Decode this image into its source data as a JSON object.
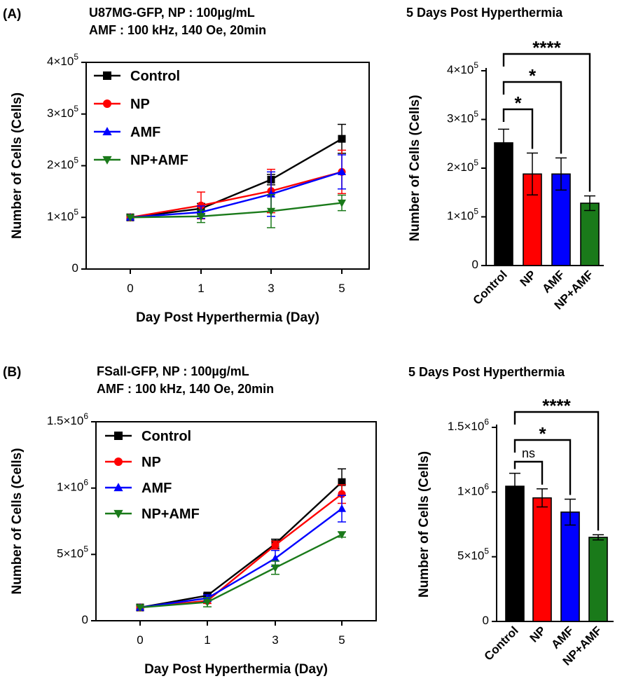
{
  "colors": {
    "Control": "#000000",
    "NP": "#ff0000",
    "AMF": "#0000ff",
    "NP+AMF": "#1a7a1a"
  },
  "panel_labels": [
    "(A)",
    "(B)"
  ],
  "chart_data": [
    {
      "type": "line",
      "panel": "(A)",
      "title": [
        "U87MG-GFP, NP : 100µg/mL",
        "AMF : 100 kHz, 140 Oe, 20min"
      ],
      "xlabel": "Day Post Hyperthermia (Day)",
      "ylabel": "Number of Cells (Cells)",
      "x_tick_labels": [
        "0",
        "1",
        "3",
        "5"
      ],
      "y_ticks": [
        {
          "value": 0,
          "mant": "0",
          "exp": ""
        },
        {
          "value": 100000,
          "mant": "1×10",
          "exp": "5"
        },
        {
          "value": 200000,
          "mant": "2×10",
          "exp": "5"
        },
        {
          "value": 300000,
          "mant": "3×10",
          "exp": "5"
        },
        {
          "value": 400000,
          "mant": "4×10",
          "exp": "5"
        }
      ],
      "ylim": [
        0,
        400000
      ],
      "legend": "top-left",
      "series": [
        {
          "name": "Control",
          "marker": "square",
          "values": [
            100000,
            117000,
            173000,
            252000
          ],
          "errors": [
            0,
            10000,
            10000,
            28000
          ]
        },
        {
          "name": "NP",
          "marker": "circle",
          "values": [
            100000,
            123000,
            151000,
            188000
          ],
          "errors": [
            0,
            26000,
            42000,
            42000
          ]
        },
        {
          "name": "AMF",
          "marker": "triangle-up",
          "values": [
            100000,
            110000,
            145000,
            188000
          ],
          "errors": [
            0,
            12000,
            43000,
            33000
          ]
        },
        {
          "name": "NP+AMF",
          "marker": "triangle-down",
          "values": [
            100000,
            102000,
            112000,
            128000
          ],
          "errors": [
            0,
            12000,
            32000,
            15000
          ]
        }
      ]
    },
    {
      "type": "bar",
      "panel": "(A)",
      "title": "5 Days Post Hyperthermia",
      "ylabel": "Number of Cells (Cells)",
      "categories": [
        "Control",
        "NP",
        "AMF",
        "NP+AMF"
      ],
      "values": [
        252000,
        188000,
        188000,
        128000
      ],
      "errors": [
        28000,
        43000,
        33000,
        15000
      ],
      "y_ticks": [
        {
          "value": 0,
          "mant": "0",
          "exp": ""
        },
        {
          "value": 100000,
          "mant": "1×10",
          "exp": "5"
        },
        {
          "value": 200000,
          "mant": "2×10",
          "exp": "5"
        },
        {
          "value": 300000,
          "mant": "3×10",
          "exp": "5"
        },
        {
          "value": 400000,
          "mant": "4×10",
          "exp": "5"
        }
      ],
      "ylim": [
        0,
        400000
      ],
      "significance": [
        {
          "from": "Control",
          "to": "NP",
          "label": "*"
        },
        {
          "from": "Control",
          "to": "AMF",
          "label": "*"
        },
        {
          "from": "Control",
          "to": "NP+AMF",
          "label": "****"
        }
      ]
    },
    {
      "type": "line",
      "panel": "(B)",
      "title": [
        "FSall-GFP, NP : 100µg/mL",
        "AMF : 100 kHz, 140 Oe, 20min"
      ],
      "xlabel": "Day Post Hyperthermia (Day)",
      "ylabel": "Number of Cells (Cells)",
      "x_tick_labels": [
        "0",
        "1",
        "3",
        "5"
      ],
      "y_ticks": [
        {
          "value": 0,
          "mant": "0",
          "exp": ""
        },
        {
          "value": 500000,
          "mant": "5×10",
          "exp": "5"
        },
        {
          "value": 1000000,
          "mant": "1×10",
          "exp": "6"
        },
        {
          "value": 1500000,
          "mant": "1.5×10",
          "exp": "6"
        }
      ],
      "ylim": [
        0,
        1500000
      ],
      "legend": "top-left",
      "series": [
        {
          "name": "Control",
          "marker": "square",
          "values": [
            100000,
            190000,
            580000,
            1045000
          ],
          "errors": [
            0,
            15000,
            35000,
            100000
          ]
        },
        {
          "name": "NP",
          "marker": "circle",
          "values": [
            100000,
            150000,
            570000,
            955000
          ],
          "errors": [
            0,
            20000,
            30000,
            70000
          ]
        },
        {
          "name": "AMF",
          "marker": "triangle-up",
          "values": [
            100000,
            170000,
            470000,
            845000
          ],
          "errors": [
            0,
            25000,
            60000,
            100000
          ]
        },
        {
          "name": "NP+AMF",
          "marker": "triangle-down",
          "values": [
            100000,
            140000,
            400000,
            650000
          ],
          "errors": [
            0,
            35000,
            50000,
            20000
          ]
        }
      ]
    },
    {
      "type": "bar",
      "panel": "(B)",
      "title": "5 Days Post Hyperthermia",
      "ylabel": "Number of Cells (Cells)",
      "categories": [
        "Control",
        "NP",
        "AMF",
        "NP+AMF"
      ],
      "values": [
        1045000,
        955000,
        845000,
        650000
      ],
      "errors": [
        100000,
        70000,
        100000,
        20000
      ],
      "y_ticks": [
        {
          "value": 0,
          "mant": "0",
          "exp": ""
        },
        {
          "value": 500000,
          "mant": "5×10",
          "exp": "5"
        },
        {
          "value": 1000000,
          "mant": "1×10",
          "exp": "6"
        },
        {
          "value": 1500000,
          "mant": "1.5×10",
          "exp": "6"
        }
      ],
      "ylim": [
        0,
        1500000
      ],
      "significance": [
        {
          "from": "Control",
          "to": "NP",
          "label": "ns"
        },
        {
          "from": "Control",
          "to": "AMF",
          "label": "*"
        },
        {
          "from": "Control",
          "to": "NP+AMF",
          "label": "****"
        }
      ]
    }
  ]
}
